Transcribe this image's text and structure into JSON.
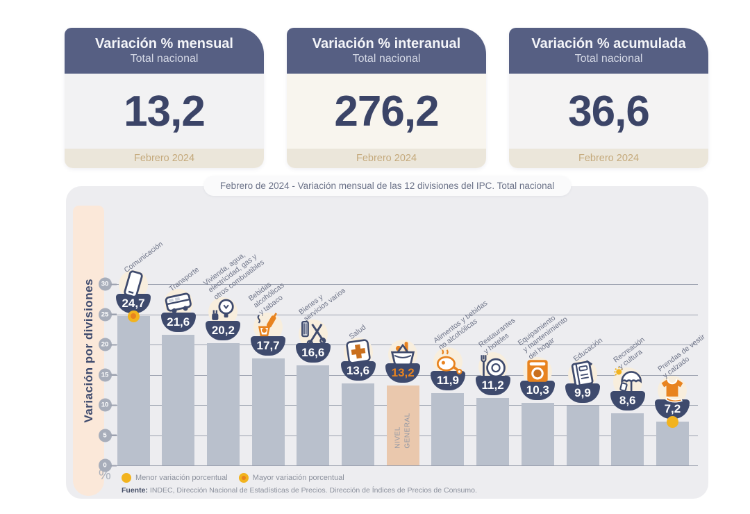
{
  "cards": [
    {
      "title": "Variación % mensual",
      "subtitle": "Total nacional",
      "value": "13,2",
      "period": "Febrero 2024"
    },
    {
      "title": "Variación % interanual",
      "subtitle": "Total nacional",
      "value": "276,2",
      "period": "Febrero 2024"
    },
    {
      "title": "Variación % acumulada",
      "subtitle": "Total nacional",
      "value": "36,6",
      "period": "Febrero 2024"
    }
  ],
  "chart": {
    "title": "Febrero de 2024 - Variación mensual de las 12 divisiones del IPC. Total nacional",
    "y_axis_label": "Variación por divisiones",
    "y_unit": "%",
    "legend": {
      "min_label": "Menor variación porcentual",
      "max_label": "Mayor variación porcentual"
    },
    "source_label": "Fuente:",
    "source": "INDEC, Dirección Nacional de Estadísticas de Precios. Dirección de Índices de Precios de Consumo."
  },
  "chart_data": {
    "type": "bar",
    "title": "Febrero de 2024 - Variación mensual de las 12 divisiones del IPC. Total nacional",
    "xlabel": "",
    "ylabel": "Variación por divisiones",
    "ylim": [
      0,
      30
    ],
    "yticks": [
      0,
      5,
      10,
      15,
      20,
      25,
      30
    ],
    "unit": "%",
    "grid": true,
    "legend_position": "bottom-left",
    "categories": [
      "Comunicación",
      "Transporte",
      "Vivienda, agua, electricidad, gas y otros combustibles",
      "Bebidas alcohólicas y tabaco",
      "Bienes y servicios varios",
      "Salud",
      "Nivel general",
      "Alimentos y bebidas no alcohólicas",
      "Restaurantes y hoteles",
      "Equipamiento y mantenimiento del hogar",
      "Educación",
      "Recreación y cultura",
      "Prendas de vestir y calzado"
    ],
    "categories_display": [
      "Comunicación",
      "Transporte",
      "Vivienda, agua,\nelectricidad, gas y\notros combustibles",
      "Bebidas\nalcohólicas\ny tabaco",
      "Bienes y\nservicios varios",
      "Salud",
      "",
      "Alimentos y bebidas\nno alcohólicas",
      "Restaurantes\ny hoteles",
      "Equipamiento\ny mantenimiento\ndel hogar",
      "Educación",
      "Recreación\ny cultura",
      "Prendas de vestir\ny calzado"
    ],
    "values": [
      24.7,
      21.6,
      20.2,
      17.7,
      16.6,
      13.6,
      13.2,
      11.9,
      11.2,
      10.3,
      9.9,
      8.6,
      7.2
    ],
    "value_labels": [
      "24,7",
      "21,6",
      "20,2",
      "17,7",
      "16,6",
      "13,6",
      "13,2",
      "11,9",
      "11,2",
      "10,3",
      "9,9",
      "8,6",
      "7,2"
    ],
    "icons": [
      "phone-icon",
      "bus-icon",
      "lightbulb-plug-icon",
      "bottle-glass-icon",
      "scissors-comb-icon",
      "health-cross-icon",
      "shopping-basket-icon",
      "roast-chicken-icon",
      "fork-plate-icon",
      "washing-machine-icon",
      "notebook-pen-icon",
      "umbrella-sun-icon",
      "tshirt-icon"
    ],
    "highlight_index": 6,
    "highlight_bar_label": "NIVEL\nGENERAL",
    "max_marker_index": 0,
    "min_marker_index": 12
  },
  "colors": {
    "header_navy": "#565f83",
    "navy_dark": "#3b4467",
    "badge_navy": "#3e4a6d",
    "orange": "#e8831f",
    "yellow": "#f2b31e",
    "bar": "#b9c0cc",
    "bar_highlight": "#eac8ad",
    "panel_bg": "#ededf0",
    "strip_bg": "#fbe8d9",
    "footer_beige": "#ebe6da",
    "footer_text": "#c4a97b",
    "grid": "#9aa0ae"
  }
}
